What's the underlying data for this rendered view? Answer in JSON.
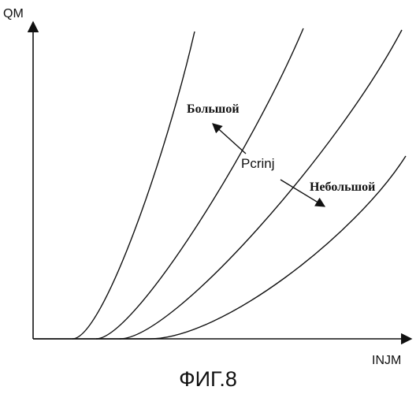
{
  "figure": {
    "caption": "ФИГ.8",
    "y_axis_label": "QM",
    "x_axis_label": "INJM"
  },
  "annotations": {
    "center_label": "Pcrinj",
    "large_label": "Большой",
    "small_label": "Небольшой"
  },
  "diagram": {
    "curve_count": 4,
    "colors": {
      "ink": "#111111",
      "background": "#ffffff"
    }
  }
}
